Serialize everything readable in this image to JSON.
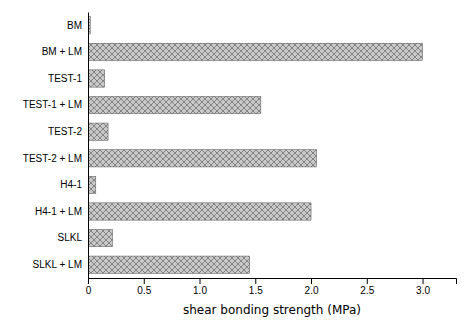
{
  "chart_data": {
    "type": "bar",
    "orientation": "horizontal",
    "categories": [
      "BM",
      "BM + LM",
      "TEST-1",
      "TEST-1 + LM",
      "TEST-2",
      "TEST-2 + LM",
      "H4-1",
      "H4-1 + LM",
      "SLKL",
      "SLKL + LM"
    ],
    "values": [
      0.02,
      3.0,
      0.15,
      1.55,
      0.18,
      2.05,
      0.07,
      2.0,
      0.22,
      1.45
    ],
    "color": "#c8c8c8",
    "xlabel": "shear bonding strength (MPa)",
    "xlim": [
      0,
      3.3
    ],
    "xticks": [
      0,
      0.5,
      {
        "value": 1.0,
        "label": "1.0"
      },
      1.5,
      {
        "value": 2.0,
        "label": "2.0"
      },
      2.5,
      {
        "value": 3.0,
        "label": "3.0"
      }
    ],
    "grid": false
  }
}
